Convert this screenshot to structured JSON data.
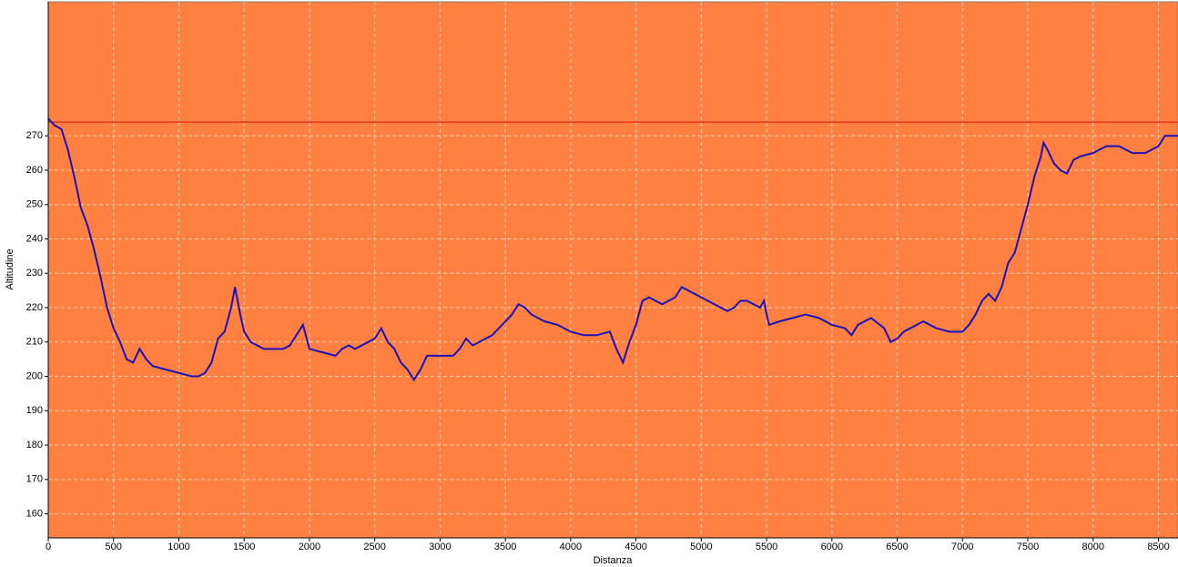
{
  "chart_data": {
    "type": "line",
    "x_label": "Distanza",
    "y_label": "Altitudine",
    "x": [
      0,
      50,
      100,
      150,
      200,
      250,
      300,
      350,
      400,
      450,
      500,
      550,
      600,
      650,
      700,
      750,
      800,
      900,
      1000,
      1100,
      1150,
      1200,
      1250,
      1300,
      1350,
      1400,
      1430,
      1470,
      1500,
      1550,
      1600,
      1650,
      1800,
      1850,
      1900,
      1950,
      2000,
      2100,
      2200,
      2250,
      2300,
      2350,
      2400,
      2500,
      2550,
      2600,
      2650,
      2700,
      2750,
      2800,
      2850,
      2900,
      3000,
      3100,
      3150,
      3200,
      3250,
      3300,
      3400,
      3500,
      3550,
      3600,
      3650,
      3700,
      3750,
      3800,
      3900,
      4000,
      4100,
      4200,
      4300,
      4350,
      4400,
      4450,
      4500,
      4550,
      4600,
      4650,
      4700,
      4800,
      4850,
      4900,
      5000,
      5100,
      5200,
      5250,
      5300,
      5350,
      5400,
      5450,
      5480,
      5500,
      5520,
      5600,
      5700,
      5800,
      5900,
      6000,
      6100,
      6150,
      6200,
      6250,
      6300,
      6400,
      6450,
      6500,
      6550,
      6650,
      6700,
      6800,
      6900,
      7000,
      7050,
      7100,
      7150,
      7200,
      7250,
      7300,
      7350,
      7400,
      7450,
      7500,
      7550,
      7600,
      7620,
      7650,
      7700,
      7750,
      7800,
      7850,
      7900,
      8000,
      8050,
      8100,
      8200,
      8300,
      8400,
      8500,
      8550,
      8650
    ],
    "series": [
      {
        "name": "Altitudine",
        "color": "#1a12b8",
        "values": [
          275,
          273,
          272,
          266,
          258,
          249,
          244,
          237,
          229,
          220,
          214,
          210,
          205,
          204,
          208,
          205,
          203,
          202,
          201,
          200,
          200,
          201,
          204,
          211,
          213,
          220,
          226,
          218,
          213,
          210,
          209,
          208,
          208,
          209,
          212,
          215,
          208,
          207,
          206,
          208,
          209,
          208,
          209,
          211,
          214,
          210,
          208,
          204,
          202,
          199,
          202,
          206,
          206,
          206,
          208,
          211,
          209,
          210,
          212,
          216,
          218,
          221,
          220,
          218,
          217,
          216,
          215,
          213,
          212,
          212,
          213,
          208,
          204,
          210,
          215,
          222,
          223,
          222,
          221,
          223,
          226,
          225,
          223,
          221,
          219,
          220,
          222,
          222,
          221,
          220,
          222,
          218,
          215,
          216,
          217,
          218,
          217,
          215,
          214,
          212,
          215,
          216,
          217,
          214,
          210,
          211,
          213,
          215,
          216,
          214,
          213,
          213,
          215,
          218,
          222,
          224,
          222,
          226,
          233,
          236,
          243,
          250,
          258,
          264,
          268,
          266,
          262,
          260,
          259,
          263,
          264,
          265,
          266,
          267,
          267,
          265,
          265,
          267,
          270,
          270
        ]
      }
    ],
    "reference_line": {
      "value": 274,
      "color": "#e01010"
    },
    "background": "#ff8040",
    "xlim": [
      0,
      8650
    ],
    "ylim": [
      153,
      309
    ],
    "xticks": [
      0,
      500,
      1000,
      1500,
      2000,
      2500,
      3000,
      3500,
      4000,
      4500,
      5000,
      5500,
      6000,
      6500,
      7000,
      7500,
      8000,
      8500
    ],
    "yticks": [
      160,
      170,
      180,
      190,
      200,
      210,
      220,
      230,
      240,
      250,
      260,
      270
    ],
    "grid": true
  }
}
